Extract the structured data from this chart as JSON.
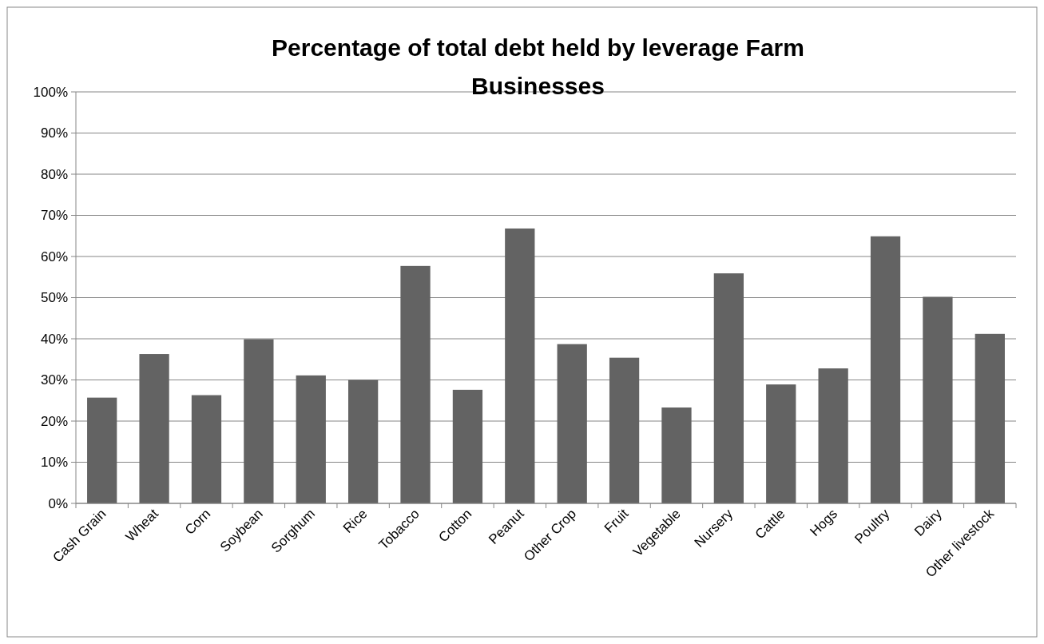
{
  "chart_data": {
    "type": "bar",
    "title": "Percentage of total debt held by leverage Farm Businesses",
    "categories": [
      "Cash Grain",
      "Wheat",
      "Corn",
      "Soybean",
      "Sorghum",
      "Rice",
      "Tobacco",
      "Cotton",
      "Peanut",
      "Other Crop",
      "Fruit",
      "Vegetable",
      "Nursery",
      "Cattle",
      "Hogs",
      "Poultry",
      "Dairy",
      "Other livestock"
    ],
    "values": [
      25.7,
      36.3,
      26.3,
      39.9,
      31.1,
      30.0,
      57.7,
      27.6,
      66.8,
      38.7,
      35.4,
      23.3,
      55.9,
      28.9,
      32.8,
      64.9,
      50.2,
      41.2
    ],
    "color": "#636363",
    "ylim": [
      0,
      100
    ],
    "yticks": [
      {
        "value": 0,
        "label": "0%"
      },
      {
        "value": 10,
        "label": "10%"
      },
      {
        "value": 20,
        "label": "20%"
      },
      {
        "value": 30,
        "label": "30%"
      },
      {
        "value": 40,
        "label": "40%"
      },
      {
        "value": 50,
        "label": "50%"
      },
      {
        "value": 60,
        "label": "60%"
      },
      {
        "value": 70,
        "label": "70%"
      },
      {
        "value": 80,
        "label": "80%"
      },
      {
        "value": 90,
        "label": "90%"
      },
      {
        "value": 100,
        "label": "100%"
      }
    ],
    "grid": "y"
  }
}
